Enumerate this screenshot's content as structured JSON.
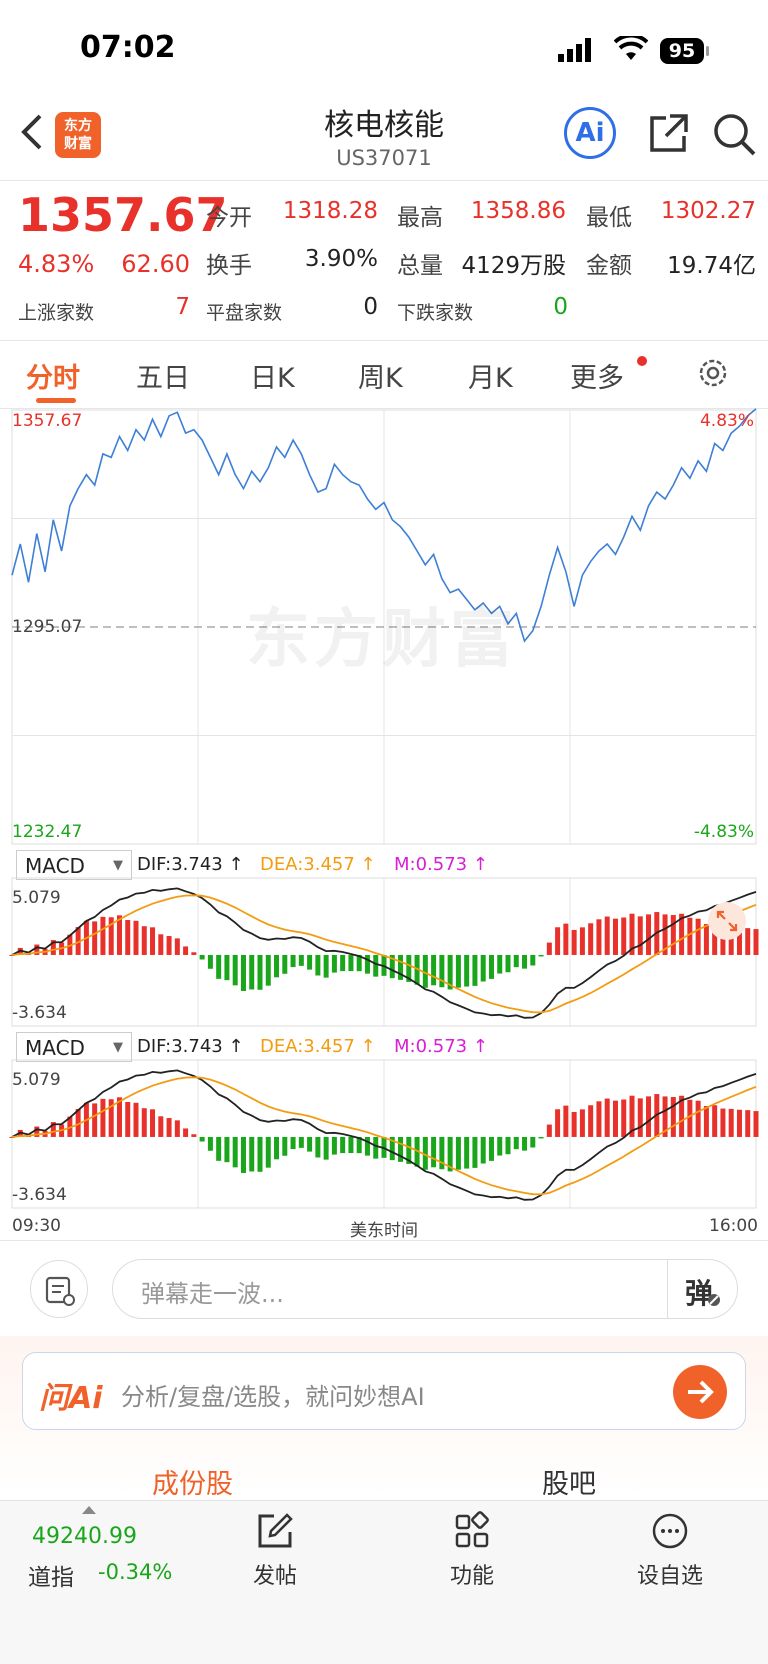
{
  "status_bar": {
    "time": "07:02",
    "battery": "95"
  },
  "header": {
    "logo_text": "东方\n财富",
    "title": "核电核能",
    "code": "US37071",
    "ai_label": "Ai"
  },
  "quote": {
    "price": "1357.67",
    "change_pct": "4.83%",
    "change_amt": "62.60",
    "stats": [
      {
        "label": "今开",
        "value": "1318.28",
        "color": "red"
      },
      {
        "label": "最高",
        "value": "1358.86",
        "color": "red"
      },
      {
        "label": "最低",
        "value": "1302.27",
        "color": "red"
      },
      {
        "label": "换手",
        "value": "3.90%",
        "color": "dark"
      },
      {
        "label": "总量",
        "value": "4129万股",
        "color": "dark"
      },
      {
        "label": "金额",
        "value": "19.74亿",
        "color": "dark"
      }
    ],
    "breadth": [
      {
        "label": "上涨家数",
        "value": "7",
        "color": "red"
      },
      {
        "label": "平盘家数",
        "value": "0",
        "color": "dark"
      },
      {
        "label": "下跌家数",
        "value": "0",
        "color": "green"
      }
    ]
  },
  "tabs": [
    "分时",
    "五日",
    "日K",
    "周K",
    "月K",
    "更多"
  ],
  "chart": {
    "price_high": "1357.67",
    "price_mid": "1295.07",
    "price_low": "1232.47",
    "pct_high": "4.83%",
    "pct_low": "-4.83%",
    "watermark": "东方财富",
    "time_start": "09:30",
    "time_mid": "美东时间",
    "time_end": "16:00"
  },
  "chart_data": {
    "type": "line",
    "ylim": [
      1232.47,
      1357.67
    ],
    "prev_close": 1295.07,
    "values": [
      1310,
      1319,
      1308,
      1322,
      1311,
      1326,
      1317,
      1330,
      1335,
      1339,
      1336,
      1345,
      1344,
      1350,
      1346,
      1352,
      1349,
      1355,
      1350,
      1356,
      1357,
      1351,
      1352,
      1349,
      1344,
      1339,
      1345,
      1339,
      1335,
      1340,
      1337,
      1341,
      1347,
      1344,
      1349,
      1345,
      1339,
      1334,
      1335,
      1342,
      1339,
      1337,
      1336,
      1332,
      1329,
      1331,
      1326,
      1324,
      1321,
      1317,
      1313,
      1316,
      1309,
      1305,
      1306,
      1303,
      1300,
      1302,
      1299,
      1301,
      1296,
      1299,
      1291,
      1294,
      1301,
      1310,
      1318,
      1311,
      1301,
      1310,
      1314,
      1317,
      1319,
      1316,
      1321,
      1327,
      1323,
      1330,
      1334,
      1332,
      1336,
      1341,
      1338,
      1343,
      1340,
      1348,
      1346,
      1351,
      1353,
      1356,
      1358
    ],
    "indicators": [
      {
        "name": "MACD",
        "dif": "DIF:3.743 ↑",
        "dea": "DEA:3.457 ↑",
        "m": "M:0.573 ↑",
        "max": "5.079",
        "min": "-3.634"
      },
      {
        "name": "MACD",
        "dif": "DIF:3.743 ↑",
        "dea": "DEA:3.457 ↑",
        "m": "M:0.573 ↑",
        "max": "5.079",
        "min": "-3.634"
      }
    ]
  },
  "danmu": {
    "placeholder": "弹幕走一波...",
    "btn": "弹"
  },
  "ask_ai": {
    "logo": "问Ai",
    "placeholder": "分析/复盘/选股，就问妙想AI"
  },
  "section_tabs": [
    "成份股",
    "股吧"
  ],
  "bottom_bar": {
    "index_value": "49240.99",
    "index_name": "道指",
    "index_change": "-0.34%",
    "items": [
      "发帖",
      "功能",
      "设自选"
    ]
  },
  "colors": {
    "up": "#e8312a",
    "down": "#1aa61a",
    "accent": "#f0622a",
    "line": "#3d7fd6",
    "dea": "#f39c12"
  }
}
